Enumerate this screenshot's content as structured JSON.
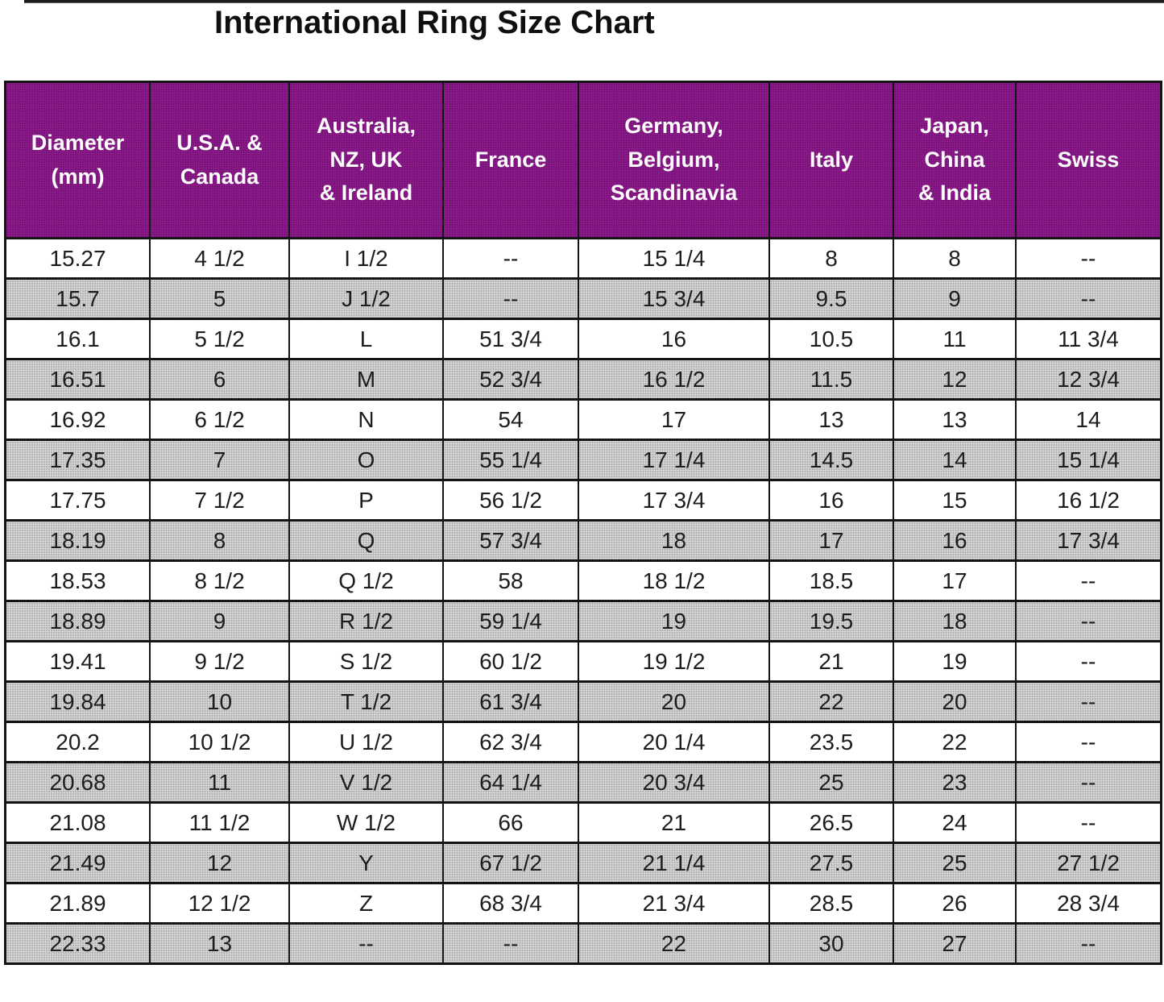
{
  "chart_data": {
    "type": "table",
    "title": "International Ring Size Chart",
    "columns": [
      {
        "key": "diameter-mm",
        "label": "Diameter\n(mm)"
      },
      {
        "key": "usa-canada",
        "label": "U.S.A. &\nCanada"
      },
      {
        "key": "australia-nz-uk-ireland",
        "label": "Australia,\nNZ, UK\n& Ireland"
      },
      {
        "key": "france",
        "label": "France"
      },
      {
        "key": "germany-belgium-scandinavia",
        "label": "Germany,\nBelgium,\nScandinavia"
      },
      {
        "key": "italy",
        "label": "Italy"
      },
      {
        "key": "japan-china-india",
        "label": "Japan,\nChina\n& India"
      },
      {
        "key": "swiss",
        "label": "Swiss"
      }
    ],
    "rows": [
      [
        "15.27",
        "4 1/2",
        "I 1/2",
        "--",
        "15 1/4",
        "8",
        "8",
        "--"
      ],
      [
        "15.7",
        "5",
        "J 1/2",
        "--",
        "15 3/4",
        "9.5",
        "9",
        "--"
      ],
      [
        "16.1",
        "5 1/2",
        "L",
        "51 3/4",
        "16",
        "10.5",
        "11",
        "11 3/4"
      ],
      [
        "16.51",
        "6",
        "M",
        "52 3/4",
        "16 1/2",
        "11.5",
        "12",
        "12 3/4"
      ],
      [
        "16.92",
        "6 1/2",
        "N",
        "54",
        "17",
        "13",
        "13",
        "14"
      ],
      [
        "17.35",
        "7",
        "O",
        "55 1/4",
        "17 1/4",
        "14.5",
        "14",
        "15 1/4"
      ],
      [
        "17.75",
        "7 1/2",
        "P",
        "56 1/2",
        "17 3/4",
        "16",
        "15",
        "16 1/2"
      ],
      [
        "18.19",
        "8",
        "Q",
        "57 3/4",
        "18",
        "17",
        "16",
        "17 3/4"
      ],
      [
        "18.53",
        "8 1/2",
        "Q 1/2",
        "58",
        "18 1/2",
        "18.5",
        "17",
        "--"
      ],
      [
        "18.89",
        "9",
        "R 1/2",
        "59 1/4",
        "19",
        "19.5",
        "18",
        "--"
      ],
      [
        "19.41",
        "9 1/2",
        "S 1/2",
        "60 1/2",
        "19 1/2",
        "21",
        "19",
        "--"
      ],
      [
        "19.84",
        "10",
        "T 1/2",
        "61 3/4",
        "20",
        "22",
        "20",
        "--"
      ],
      [
        "20.2",
        "10 1/2",
        "U 1/2",
        "62 3/4",
        "20 1/4",
        "23.5",
        "22",
        "--"
      ],
      [
        "20.68",
        "11",
        "V 1/2",
        "64 1/4",
        "20 3/4",
        "25",
        "23",
        "--"
      ],
      [
        "21.08",
        "11 1/2",
        "W 1/2",
        "66",
        "21",
        "26.5",
        "24",
        "--"
      ],
      [
        "21.49",
        "12",
        "Y",
        "67 1/2",
        "21 1/4",
        "27.5",
        "25",
        "27 1/2"
      ],
      [
        "21.89",
        "12 1/2",
        "Z",
        "68 3/4",
        "21 3/4",
        "28.5",
        "26",
        "28 3/4"
      ],
      [
        "22.33",
        "13",
        "--",
        "--",
        "22",
        "30",
        "27",
        "--"
      ]
    ],
    "colors": {
      "header_bg": "#8e1b8e",
      "header_text": "#ffffff",
      "shaded_row_bg": "#d6d6d6",
      "border": "#141414",
      "text": "#1d1d1d"
    },
    "layout_hints": {
      "shading": "alternating rows, first data row white",
      "grid": "on"
    }
  }
}
